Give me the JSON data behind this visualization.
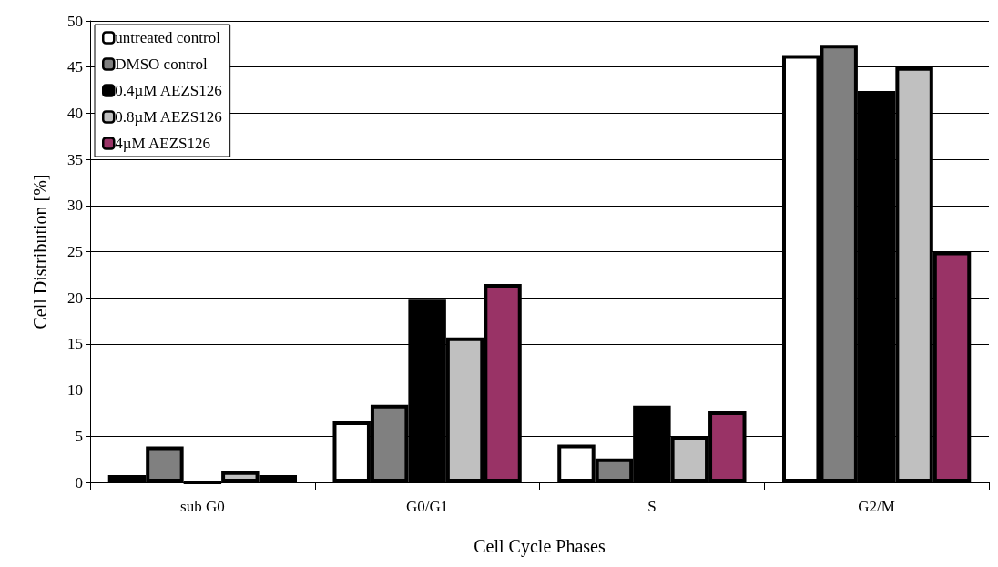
{
  "chart_data": {
    "type": "bar",
    "xlabel": "Cell Cycle Phases",
    "ylabel": "Cell Distribution [%]",
    "categories": [
      "sub G0",
      "G0/G1",
      "S",
      "G2/M"
    ],
    "series": [
      {
        "name": "untreated control",
        "color": "#ffffff",
        "values": [
          0.8,
          6.6,
          4.1,
          46.3
        ]
      },
      {
        "name": "DMSO control",
        "color": "#808080",
        "values": [
          3.9,
          8.4,
          2.6,
          47.4
        ]
      },
      {
        "name": "0.4µM AEZS126",
        "color": "#000000",
        "values": [
          0,
          19.8,
          8.3,
          42.4
        ]
      },
      {
        "name": "0.8µM AEZS126",
        "color": "#c0c0c0",
        "values": [
          1.2,
          15.7,
          5.0,
          45.0
        ]
      },
      {
        "name": "4µM AEZS126",
        "color": "#993366",
        "values": [
          0.8,
          21.5,
          7.7,
          25.0
        ]
      }
    ],
    "ylim": [
      0,
      50
    ],
    "yticks": [
      0,
      5,
      10,
      15,
      20,
      25,
      30,
      35,
      40,
      45,
      50
    ],
    "grid": "y",
    "legend": "top left"
  }
}
